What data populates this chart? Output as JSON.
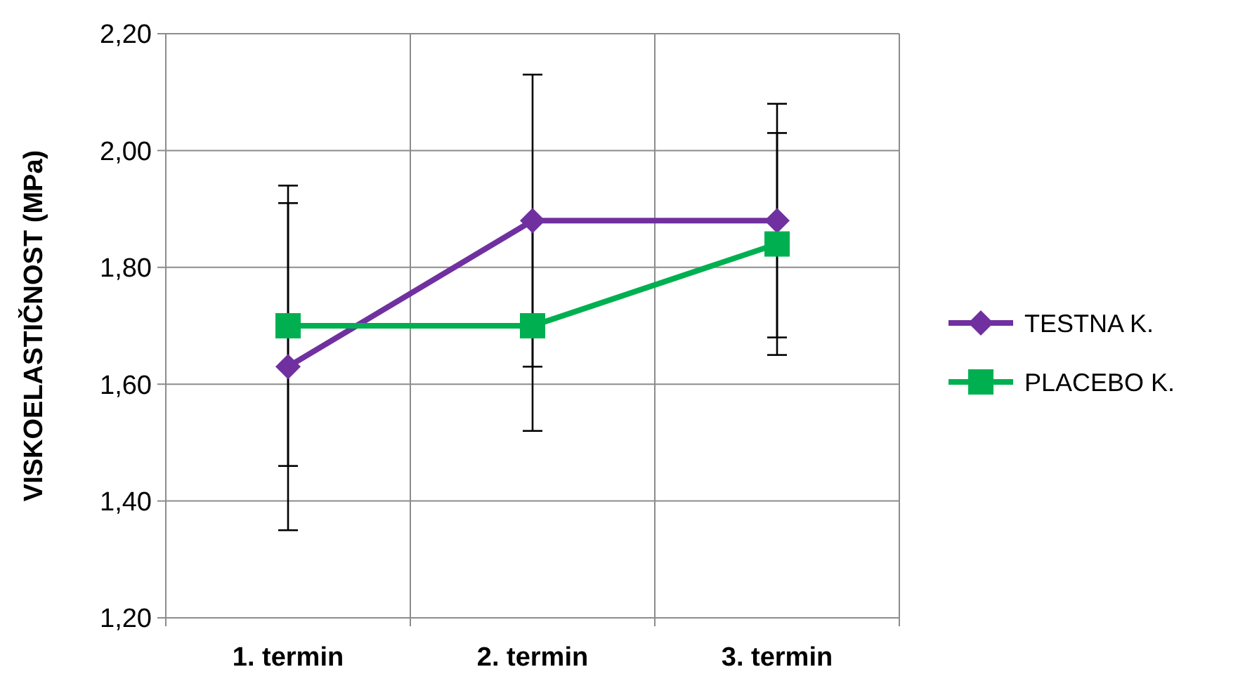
{
  "chart_data": {
    "type": "line",
    "ylabel": "VISKOELASTIČNOST (MPa)",
    "categories": [
      "1. termin",
      "2. termin",
      "3. termin"
    ],
    "series": [
      {
        "name": "TESTNA K.",
        "color": "#7030a0",
        "values": [
          1.63,
          1.88,
          1.88
        ],
        "errors": [
          0.28,
          0.25,
          0.2
        ],
        "marker": "diamond"
      },
      {
        "name": "PLACEBO K.",
        "color": "#00b050",
        "values": [
          1.7,
          1.7,
          1.84
        ],
        "errors": [
          0.24,
          0.18,
          0.19
        ],
        "marker": "square"
      }
    ],
    "ylim": [
      1.2,
      2.2
    ],
    "yticks": [
      {
        "value": 1.2,
        "label": "1,20"
      },
      {
        "value": 1.4,
        "label": "1,40"
      },
      {
        "value": 1.6,
        "label": "1,60"
      },
      {
        "value": 1.8,
        "label": "1,80"
      },
      {
        "value": 2.0,
        "label": "2,00"
      },
      {
        "value": 2.2,
        "label": "2,20"
      }
    ],
    "grid": true,
    "legend": "right",
    "line_style": "solid"
  }
}
